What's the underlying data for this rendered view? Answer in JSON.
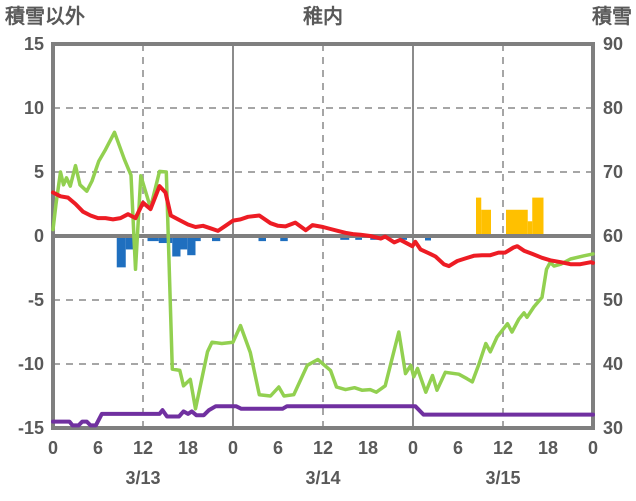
{
  "chart_data": {
    "type": "line",
    "title": "稚内",
    "x_axis": {
      "hours": 72,
      "tick_interval_hours": 6,
      "tick_labels": [
        "0",
        "6",
        "12",
        "18",
        "0",
        "6",
        "12",
        "18",
        "0",
        "6",
        "12",
        "18",
        "0"
      ],
      "date_labels": [
        "3/13",
        "3/14",
        "3/15"
      ],
      "date_center_hours": [
        12,
        36,
        60
      ],
      "gridline_hours_dashed": [
        12,
        36,
        60
      ],
      "gridline_hours_solid": [
        24,
        48
      ]
    },
    "y_left": {
      "label": "積雪以外",
      "min": -15,
      "max": 15,
      "ticks": [
        15,
        10,
        5,
        0,
        -5,
        -10,
        -15
      ]
    },
    "y_right": {
      "label": "積雪",
      "min": 30,
      "max": 90,
      "ticks": [
        90,
        80,
        70,
        60,
        50,
        40,
        30
      ]
    },
    "grid": true,
    "legend": "none",
    "series": [
      {
        "name": "blue-bars",
        "type": "bar",
        "axis": "left",
        "color": "#1f6fbf",
        "segments": [
          [
            8.5,
            9.7,
            -2.45
          ],
          [
            9.7,
            10.7,
            -1.05
          ],
          [
            12.6,
            14.1,
            -0.4
          ],
          [
            14.1,
            15.9,
            -0.55
          ],
          [
            15.9,
            17,
            -1.6
          ],
          [
            17,
            17.9,
            -1.05
          ],
          [
            17.9,
            19,
            -1.5
          ],
          [
            19,
            19.7,
            -0.4
          ],
          [
            21.2,
            22.3,
            -0.4
          ],
          [
            27.4,
            28.4,
            -0.4
          ],
          [
            30.3,
            31.3,
            -0.4
          ],
          [
            38.3,
            39.5,
            -0.3
          ],
          [
            40.3,
            41.2,
            -0.3
          ],
          [
            42.3,
            44,
            -0.3
          ],
          [
            46.3,
            47.2,
            -0.3
          ],
          [
            49.6,
            50.4,
            -0.35
          ]
        ]
      },
      {
        "name": "orange-bars",
        "type": "bar",
        "axis": "left",
        "color": "#ffc000",
        "segments": [
          [
            56.4,
            57.1,
            3
          ],
          [
            57.1,
            58.4,
            2.05
          ],
          [
            60.4,
            63.3,
            2.05
          ],
          [
            63.3,
            63.9,
            1.15
          ],
          [
            63.9,
            65.4,
            3
          ]
        ]
      },
      {
        "name": "green-line",
        "type": "line",
        "axis": "right",
        "color": "#92d050",
        "width": 3.5,
        "points": [
          [
            0,
            61
          ],
          [
            0.4,
            65
          ],
          [
            1,
            70
          ],
          [
            1.4,
            68
          ],
          [
            1.8,
            69.1
          ],
          [
            2.3,
            67.8
          ],
          [
            3,
            71
          ],
          [
            3.6,
            68
          ],
          [
            4.5,
            67
          ],
          [
            5.2,
            68.6
          ],
          [
            6.1,
            71.7
          ],
          [
            7,
            73.5
          ],
          [
            8.2,
            76.2
          ],
          [
            9.5,
            72
          ],
          [
            10.4,
            69.5
          ],
          [
            11,
            54.8
          ],
          [
            11.7,
            69.4
          ],
          [
            13,
            64.4
          ],
          [
            14.2,
            70.1
          ],
          [
            15.1,
            70
          ],
          [
            15.9,
            39.2
          ],
          [
            16.9,
            39
          ],
          [
            17.4,
            36.6
          ],
          [
            18.3,
            37.6
          ],
          [
            19,
            33
          ],
          [
            20.6,
            41.9
          ],
          [
            21.2,
            43.4
          ],
          [
            22.5,
            43.2
          ],
          [
            24,
            43.4
          ],
          [
            25,
            46
          ],
          [
            26.3,
            41.8
          ],
          [
            27.5,
            35.2
          ],
          [
            29,
            35
          ],
          [
            30.1,
            36.4
          ],
          [
            30.8,
            35
          ],
          [
            32.1,
            35.2
          ],
          [
            33.9,
            39.8
          ],
          [
            35.3,
            40.7
          ],
          [
            37,
            39
          ],
          [
            37.8,
            36.4
          ],
          [
            39,
            36
          ],
          [
            40.2,
            36.3
          ],
          [
            41.2,
            35.9
          ],
          [
            42.3,
            36
          ],
          [
            43.1,
            35.6
          ],
          [
            44.3,
            36.6
          ],
          [
            46.1,
            45
          ],
          [
            47,
            38.5
          ],
          [
            47.7,
            39.8
          ],
          [
            48.1,
            38
          ],
          [
            48.6,
            39.3
          ],
          [
            49.7,
            35.6
          ],
          [
            50.6,
            38.2
          ],
          [
            51.2,
            35.9
          ],
          [
            52.3,
            38.7
          ],
          [
            54.1,
            38.4
          ],
          [
            55.2,
            37.7
          ],
          [
            55.9,
            37.2
          ],
          [
            56.8,
            40
          ],
          [
            57.7,
            43.2
          ],
          [
            58.3,
            41.9
          ],
          [
            59.2,
            44.2
          ],
          [
            60.6,
            46.3
          ],
          [
            61.2,
            45
          ],
          [
            62.1,
            47
          ],
          [
            62.8,
            48
          ],
          [
            63.2,
            47.3
          ],
          [
            64.1,
            48.9
          ],
          [
            65.2,
            50.4
          ],
          [
            65.8,
            54.8
          ],
          [
            66.3,
            55.9
          ],
          [
            66.8,
            55.3
          ],
          [
            67.7,
            55.6
          ],
          [
            69,
            56.4
          ],
          [
            70.8,
            56.9
          ],
          [
            72,
            57.2
          ]
        ]
      },
      {
        "name": "purple-line",
        "type": "line",
        "axis": "left",
        "color": "#7030a0",
        "width": 4,
        "points": [
          [
            0,
            -14.5
          ],
          [
            2.2,
            -14.5
          ],
          [
            2.6,
            -14.8
          ],
          [
            3.4,
            -14.8
          ],
          [
            3.9,
            -14.5
          ],
          [
            4.5,
            -14.5
          ],
          [
            5,
            -14.8
          ],
          [
            5.7,
            -14.8
          ],
          [
            6.5,
            -13.9
          ],
          [
            14.2,
            -13.9
          ],
          [
            14.6,
            -13.6
          ],
          [
            15.2,
            -14.1
          ],
          [
            16.8,
            -14.1
          ],
          [
            17.4,
            -13.7
          ],
          [
            18,
            -13.9
          ],
          [
            18.5,
            -13.7
          ],
          [
            19.1,
            -14
          ],
          [
            20.1,
            -14
          ],
          [
            20.8,
            -13.6
          ],
          [
            21.7,
            -13.3
          ],
          [
            24.4,
            -13.3
          ],
          [
            25.1,
            -13.5
          ],
          [
            30.6,
            -13.5
          ],
          [
            31.2,
            -13.3
          ],
          [
            48.3,
            -13.3
          ],
          [
            49.4,
            -13.95
          ],
          [
            72,
            -13.95
          ]
        ]
      },
      {
        "name": "red-line",
        "type": "line",
        "axis": "left",
        "color": "#ed1c24",
        "width": 4,
        "points": [
          [
            0,
            3.4
          ],
          [
            1,
            3.1
          ],
          [
            2,
            3.0
          ],
          [
            3,
            2.5
          ],
          [
            4,
            1.9
          ],
          [
            5,
            1.6
          ],
          [
            6,
            1.4
          ],
          [
            7,
            1.4
          ],
          [
            8,
            1.3
          ],
          [
            9,
            1.4
          ],
          [
            10,
            1.7
          ],
          [
            11,
            1.4
          ],
          [
            12,
            2.6
          ],
          [
            13,
            2.1
          ],
          [
            14.2,
            3.9
          ],
          [
            15,
            3.4
          ],
          [
            15.7,
            1.6
          ],
          [
            17,
            1.2
          ],
          [
            18,
            0.9
          ],
          [
            19,
            0.7
          ],
          [
            20,
            0.8
          ],
          [
            21,
            0.6
          ],
          [
            22,
            0.4
          ],
          [
            23,
            0.8
          ],
          [
            24,
            1.2
          ],
          [
            25,
            1.3
          ],
          [
            26,
            1.5
          ],
          [
            27.5,
            1.6
          ],
          [
            29,
            1.0
          ],
          [
            30,
            0.8
          ],
          [
            31,
            0.75
          ],
          [
            32.3,
            1.05
          ],
          [
            33.7,
            0.45
          ],
          [
            34.6,
            0.85
          ],
          [
            36,
            0.7
          ],
          [
            37,
            0.55
          ],
          [
            38,
            0.4
          ],
          [
            39,
            0.25
          ],
          [
            40,
            0.15
          ],
          [
            41,
            0.1
          ],
          [
            42.3,
            0
          ],
          [
            43.7,
            -0.2
          ],
          [
            44.3,
            -0.05
          ],
          [
            45.5,
            -0.5
          ],
          [
            46.3,
            -0.3
          ],
          [
            47.9,
            -0.8
          ],
          [
            48.3,
            -0.45
          ],
          [
            49,
            -1.05
          ],
          [
            50.3,
            -1.4
          ],
          [
            51,
            -1.6
          ],
          [
            52.1,
            -2.2
          ],
          [
            52.8,
            -2.35
          ],
          [
            53.9,
            -1.95
          ],
          [
            55,
            -1.75
          ],
          [
            56.1,
            -1.55
          ],
          [
            57.2,
            -1.5
          ],
          [
            58.3,
            -1.5
          ],
          [
            59.4,
            -1.3
          ],
          [
            60.3,
            -1.3
          ],
          [
            61.4,
            -0.9
          ],
          [
            61.9,
            -0.8
          ],
          [
            62.8,
            -1.15
          ],
          [
            63.9,
            -1.4
          ],
          [
            65.2,
            -1.7
          ],
          [
            66.3,
            -1.9
          ],
          [
            67.7,
            -2.05
          ],
          [
            69,
            -2.2
          ],
          [
            70.3,
            -2.2
          ],
          [
            71.7,
            -2.05
          ],
          [
            72,
            -2.1
          ]
        ]
      }
    ],
    "style": {
      "plot_border_color": "#7f7f7f",
      "zero_line_color": "#7f7f7f",
      "gridline_color": "#a6a6a6",
      "day_line_color": "#8c8c8c",
      "label_color": "#595959"
    }
  }
}
